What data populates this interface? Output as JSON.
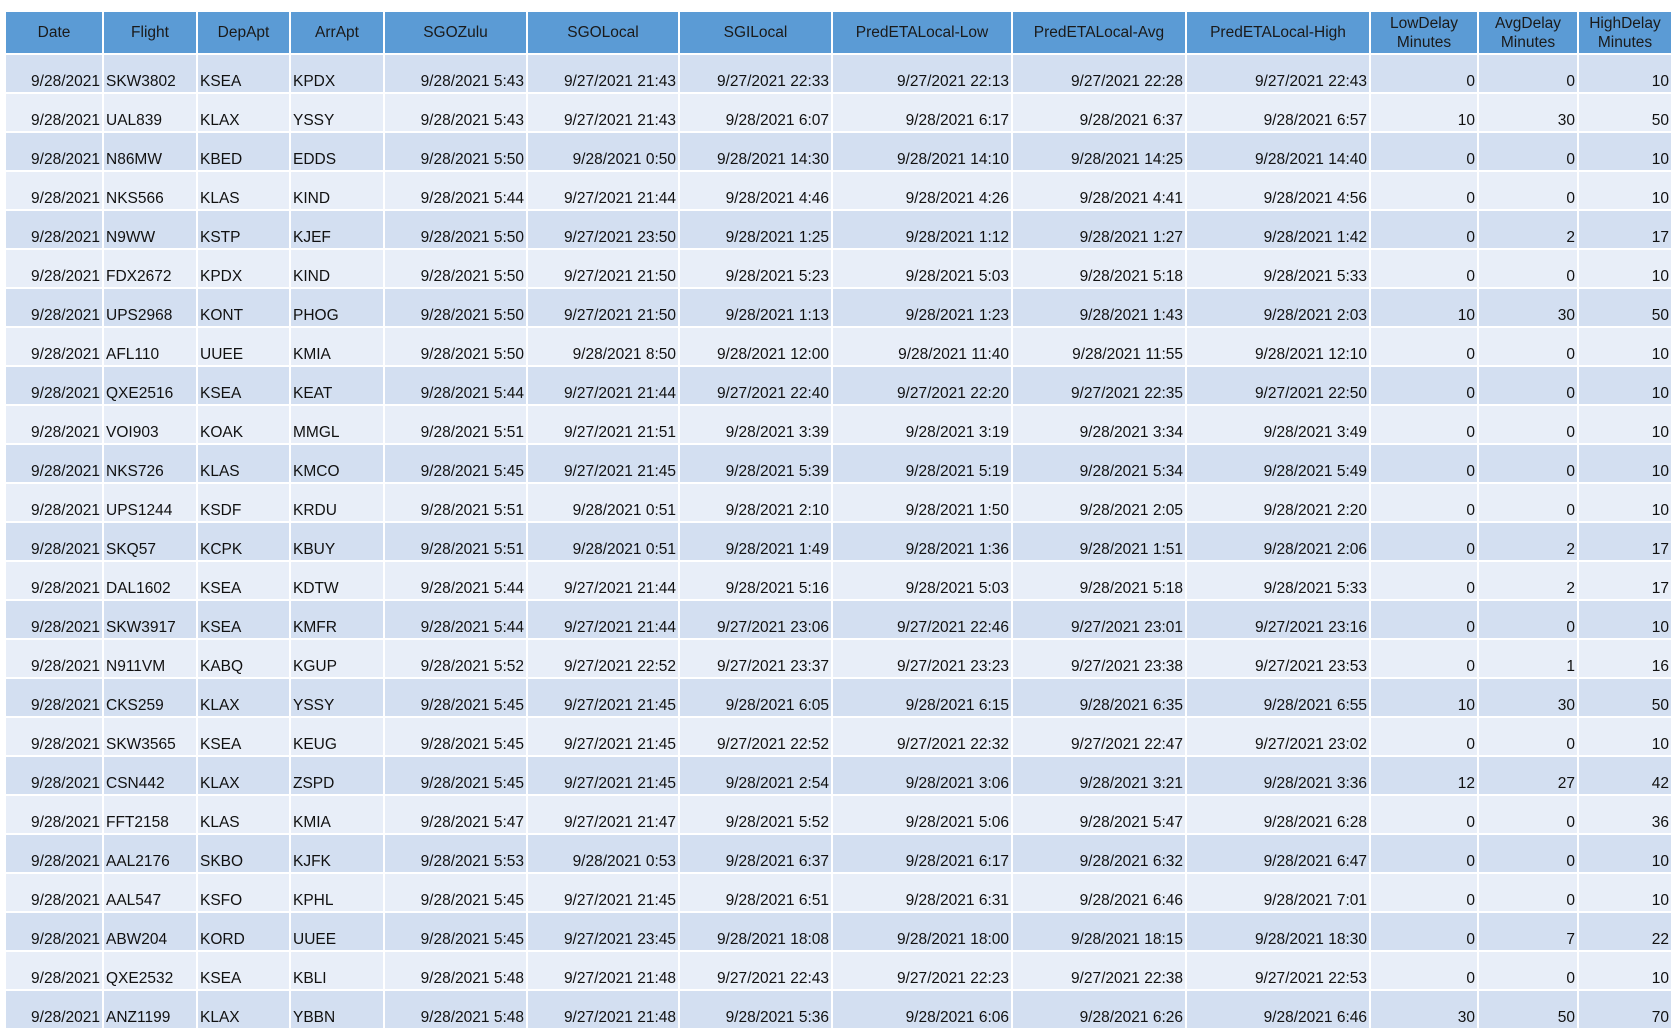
{
  "table": {
    "headers": [
      "Date",
      "Flight",
      "DepApt",
      "ArrApt",
      "SGOZulu",
      "SGOLocal",
      "SGILocal",
      "PredETALocal-Low",
      "PredETALocal-Avg",
      "PredETALocal-High",
      "LowDelay Minutes",
      "AvgDelay Minutes",
      "HighDelay Minutes"
    ],
    "rows": [
      [
        "9/28/2021",
        "SKW3802",
        "KSEA",
        "KPDX",
        "9/28/2021 5:43",
        "9/27/2021 21:43",
        "9/27/2021 22:33",
        "9/27/2021 22:13",
        "9/27/2021 22:28",
        "9/27/2021 22:43",
        0,
        0,
        10
      ],
      [
        "9/28/2021",
        "UAL839",
        "KLAX",
        "YSSY",
        "9/28/2021 5:43",
        "9/27/2021 21:43",
        "9/28/2021 6:07",
        "9/28/2021 6:17",
        "9/28/2021 6:37",
        "9/28/2021 6:57",
        10,
        30,
        50
      ],
      [
        "9/28/2021",
        "N86MW",
        "KBED",
        "EDDS",
        "9/28/2021 5:50",
        "9/28/2021 0:50",
        "9/28/2021 14:30",
        "9/28/2021 14:10",
        "9/28/2021 14:25",
        "9/28/2021 14:40",
        0,
        0,
        10
      ],
      [
        "9/28/2021",
        "NKS566",
        "KLAS",
        "KIND",
        "9/28/2021 5:44",
        "9/27/2021 21:44",
        "9/28/2021 4:46",
        "9/28/2021 4:26",
        "9/28/2021 4:41",
        "9/28/2021 4:56",
        0,
        0,
        10
      ],
      [
        "9/28/2021",
        "N9WW",
        "KSTP",
        "KJEF",
        "9/28/2021 5:50",
        "9/27/2021 23:50",
        "9/28/2021 1:25",
        "9/28/2021 1:12",
        "9/28/2021 1:27",
        "9/28/2021 1:42",
        0,
        2,
        17
      ],
      [
        "9/28/2021",
        "FDX2672",
        "KPDX",
        "KIND",
        "9/28/2021 5:50",
        "9/27/2021 21:50",
        "9/28/2021 5:23",
        "9/28/2021 5:03",
        "9/28/2021 5:18",
        "9/28/2021 5:33",
        0,
        0,
        10
      ],
      [
        "9/28/2021",
        "UPS2968",
        "KONT",
        "PHOG",
        "9/28/2021 5:50",
        "9/27/2021 21:50",
        "9/28/2021 1:13",
        "9/28/2021 1:23",
        "9/28/2021 1:43",
        "9/28/2021 2:03",
        10,
        30,
        50
      ],
      [
        "9/28/2021",
        "AFL110",
        "UUEE",
        "KMIA",
        "9/28/2021 5:50",
        "9/28/2021 8:50",
        "9/28/2021 12:00",
        "9/28/2021 11:40",
        "9/28/2021 11:55",
        "9/28/2021 12:10",
        0,
        0,
        10
      ],
      [
        "9/28/2021",
        "QXE2516",
        "KSEA",
        "KEAT",
        "9/28/2021 5:44",
        "9/27/2021 21:44",
        "9/27/2021 22:40",
        "9/27/2021 22:20",
        "9/27/2021 22:35",
        "9/27/2021 22:50",
        0,
        0,
        10
      ],
      [
        "9/28/2021",
        "VOI903",
        "KOAK",
        "MMGL",
        "9/28/2021 5:51",
        "9/27/2021 21:51",
        "9/28/2021 3:39",
        "9/28/2021 3:19",
        "9/28/2021 3:34",
        "9/28/2021 3:49",
        0,
        0,
        10
      ],
      [
        "9/28/2021",
        "NKS726",
        "KLAS",
        "KMCO",
        "9/28/2021 5:45",
        "9/27/2021 21:45",
        "9/28/2021 5:39",
        "9/28/2021 5:19",
        "9/28/2021 5:34",
        "9/28/2021 5:49",
        0,
        0,
        10
      ],
      [
        "9/28/2021",
        "UPS1244",
        "KSDF",
        "KRDU",
        "9/28/2021 5:51",
        "9/28/2021 0:51",
        "9/28/2021 2:10",
        "9/28/2021 1:50",
        "9/28/2021 2:05",
        "9/28/2021 2:20",
        0,
        0,
        10
      ],
      [
        "9/28/2021",
        "SKQ57",
        "KCPK",
        "KBUY",
        "9/28/2021 5:51",
        "9/28/2021 0:51",
        "9/28/2021 1:49",
        "9/28/2021 1:36",
        "9/28/2021 1:51",
        "9/28/2021 2:06",
        0,
        2,
        17
      ],
      [
        "9/28/2021",
        "DAL1602",
        "KSEA",
        "KDTW",
        "9/28/2021 5:44",
        "9/27/2021 21:44",
        "9/28/2021 5:16",
        "9/28/2021 5:03",
        "9/28/2021 5:18",
        "9/28/2021 5:33",
        0,
        2,
        17
      ],
      [
        "9/28/2021",
        "SKW3917",
        "KSEA",
        "KMFR",
        "9/28/2021 5:44",
        "9/27/2021 21:44",
        "9/27/2021 23:06",
        "9/27/2021 22:46",
        "9/27/2021 23:01",
        "9/27/2021 23:16",
        0,
        0,
        10
      ],
      [
        "9/28/2021",
        "N911VM",
        "KABQ",
        "KGUP",
        "9/28/2021 5:52",
        "9/27/2021 22:52",
        "9/27/2021 23:37",
        "9/27/2021 23:23",
        "9/27/2021 23:38",
        "9/27/2021 23:53",
        0,
        1,
        16
      ],
      [
        "9/28/2021",
        "CKS259",
        "KLAX",
        "YSSY",
        "9/28/2021 5:45",
        "9/27/2021 21:45",
        "9/28/2021 6:05",
        "9/28/2021 6:15",
        "9/28/2021 6:35",
        "9/28/2021 6:55",
        10,
        30,
        50
      ],
      [
        "9/28/2021",
        "SKW3565",
        "KSEA",
        "KEUG",
        "9/28/2021 5:45",
        "9/27/2021 21:45",
        "9/27/2021 22:52",
        "9/27/2021 22:32",
        "9/27/2021 22:47",
        "9/27/2021 23:02",
        0,
        0,
        10
      ],
      [
        "9/28/2021",
        "CSN442",
        "KLAX",
        "ZSPD",
        "9/28/2021 5:45",
        "9/27/2021 21:45",
        "9/28/2021 2:54",
        "9/28/2021 3:06",
        "9/28/2021 3:21",
        "9/28/2021 3:36",
        12,
        27,
        42
      ],
      [
        "9/28/2021",
        "FFT2158",
        "KLAS",
        "KMIA",
        "9/28/2021 5:47",
        "9/27/2021 21:47",
        "9/28/2021 5:52",
        "9/28/2021 5:06",
        "9/28/2021 5:47",
        "9/28/2021 6:28",
        0,
        0,
        36
      ],
      [
        "9/28/2021",
        "AAL2176",
        "SKBO",
        "KJFK",
        "9/28/2021 5:53",
        "9/28/2021 0:53",
        "9/28/2021 6:37",
        "9/28/2021 6:17",
        "9/28/2021 6:32",
        "9/28/2021 6:47",
        0,
        0,
        10
      ],
      [
        "9/28/2021",
        "AAL547",
        "KSFO",
        "KPHL",
        "9/28/2021 5:45",
        "9/27/2021 21:45",
        "9/28/2021 6:51",
        "9/28/2021 6:31",
        "9/28/2021 6:46",
        "9/28/2021 7:01",
        0,
        0,
        10
      ],
      [
        "9/28/2021",
        "ABW204",
        "KORD",
        "UUEE",
        "9/28/2021 5:45",
        "9/27/2021 23:45",
        "9/28/2021 18:08",
        "9/28/2021 18:00",
        "9/28/2021 18:15",
        "9/28/2021 18:30",
        0,
        7,
        22
      ],
      [
        "9/28/2021",
        "QXE2532",
        "KSEA",
        "KBLI",
        "9/28/2021 5:48",
        "9/27/2021 21:48",
        "9/27/2021 22:43",
        "9/27/2021 22:23",
        "9/27/2021 22:38",
        "9/27/2021 22:53",
        0,
        0,
        10
      ],
      [
        "9/28/2021",
        "ANZ1199",
        "KLAX",
        "YBBN",
        "9/28/2021 5:48",
        "9/27/2021 21:48",
        "9/28/2021 5:36",
        "9/28/2021 6:06",
        "9/28/2021 6:26",
        "9/28/2021 6:46",
        30,
        50,
        70
      ]
    ]
  }
}
